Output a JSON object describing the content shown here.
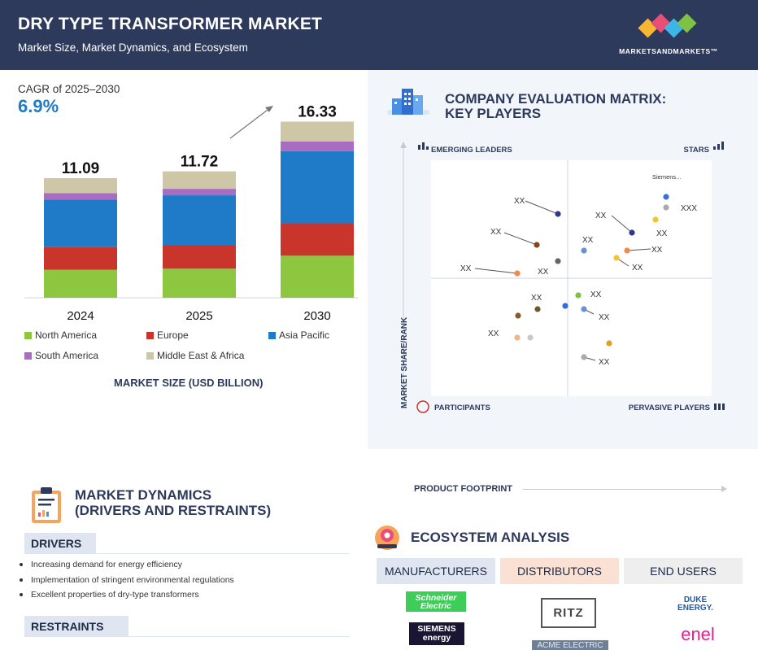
{
  "header": {
    "title": "DRY TYPE TRANSFORMER MARKET",
    "subtitle": "Market Size, Market Dynamics, and Ecosystem",
    "logo_text": "MARKETSANDMARKETS™"
  },
  "cagr": {
    "label": "CAGR of 2025–2030",
    "value": "6.9%"
  },
  "chart_data": {
    "type": "bar",
    "stacked": true,
    "categories": [
      "2024",
      "2025",
      "2030"
    ],
    "totals": [
      11.09,
      11.72,
      16.33
    ],
    "series": [
      {
        "name": "North America",
        "color": "#8dc63f",
        "values": [
          2.6,
          2.7,
          3.9
        ]
      },
      {
        "name": "Europe",
        "color": "#c9352b",
        "values": [
          2.1,
          2.2,
          3.0
        ]
      },
      {
        "name": "Asia Pacific",
        "color": "#1f7ac8",
        "values": [
          4.4,
          4.6,
          6.7
        ]
      },
      {
        "name": "South America",
        "color": "#a86cc1",
        "values": [
          0.6,
          0.6,
          0.9
        ]
      },
      {
        "name": "Middle East & Africa",
        "color": "#cdc7a7",
        "values": [
          1.39,
          1.62,
          1.83
        ]
      }
    ],
    "xlabel": "MARKET SIZE (USD BILLION)",
    "ylim": [
      0,
      17.5
    ],
    "legend_position": "bottom"
  },
  "matrix": {
    "title_line1": "COMPANY EVALUATION MATRIX:",
    "title_line2": "KEY PLAYERS",
    "quadrants": {
      "top_left": "EMERGING LEADERS",
      "top_right": "STARS",
      "bottom_left": "PARTICIPANTS",
      "bottom_right": "PERVASIVE PLAYERS"
    },
    "y_axis_label": "MARKET SHARE/RANK",
    "x_axis_label": "PRODUCT FOOTPRINT",
    "labels": [
      "Siemens...",
      "XXX",
      "XX"
    ]
  },
  "dynamics": {
    "title_line1": "MARKET DYNAMICS",
    "title_line2": "(DRIVERS AND RESTRAINTS)",
    "drivers_label": "DRIVERS",
    "drivers": [
      "Increasing demand for energy efficiency",
      "Implementation of stringent environmental regulations",
      "Excellent properties of dry-type transformers"
    ],
    "restraints_label": "RESTRAINTS"
  },
  "ecosystem": {
    "title": "ECOSYSTEM ANALYSIS",
    "columns": [
      "MANUFACTURERS",
      "DISTRIBUTORS",
      "END USERS"
    ],
    "brands": {
      "schneider": "Schneider Electric",
      "siemens": "SIEMENS energy",
      "ritz": "RITZ",
      "acme": "ACME ELECTRIC",
      "duke": "DUKE ENERGY.",
      "enel": "enel"
    }
  },
  "colors": {
    "header_bg": "#2d3a5c",
    "accent_blue": "#1f7ac8",
    "panel_bg": "#f2f6fb"
  }
}
